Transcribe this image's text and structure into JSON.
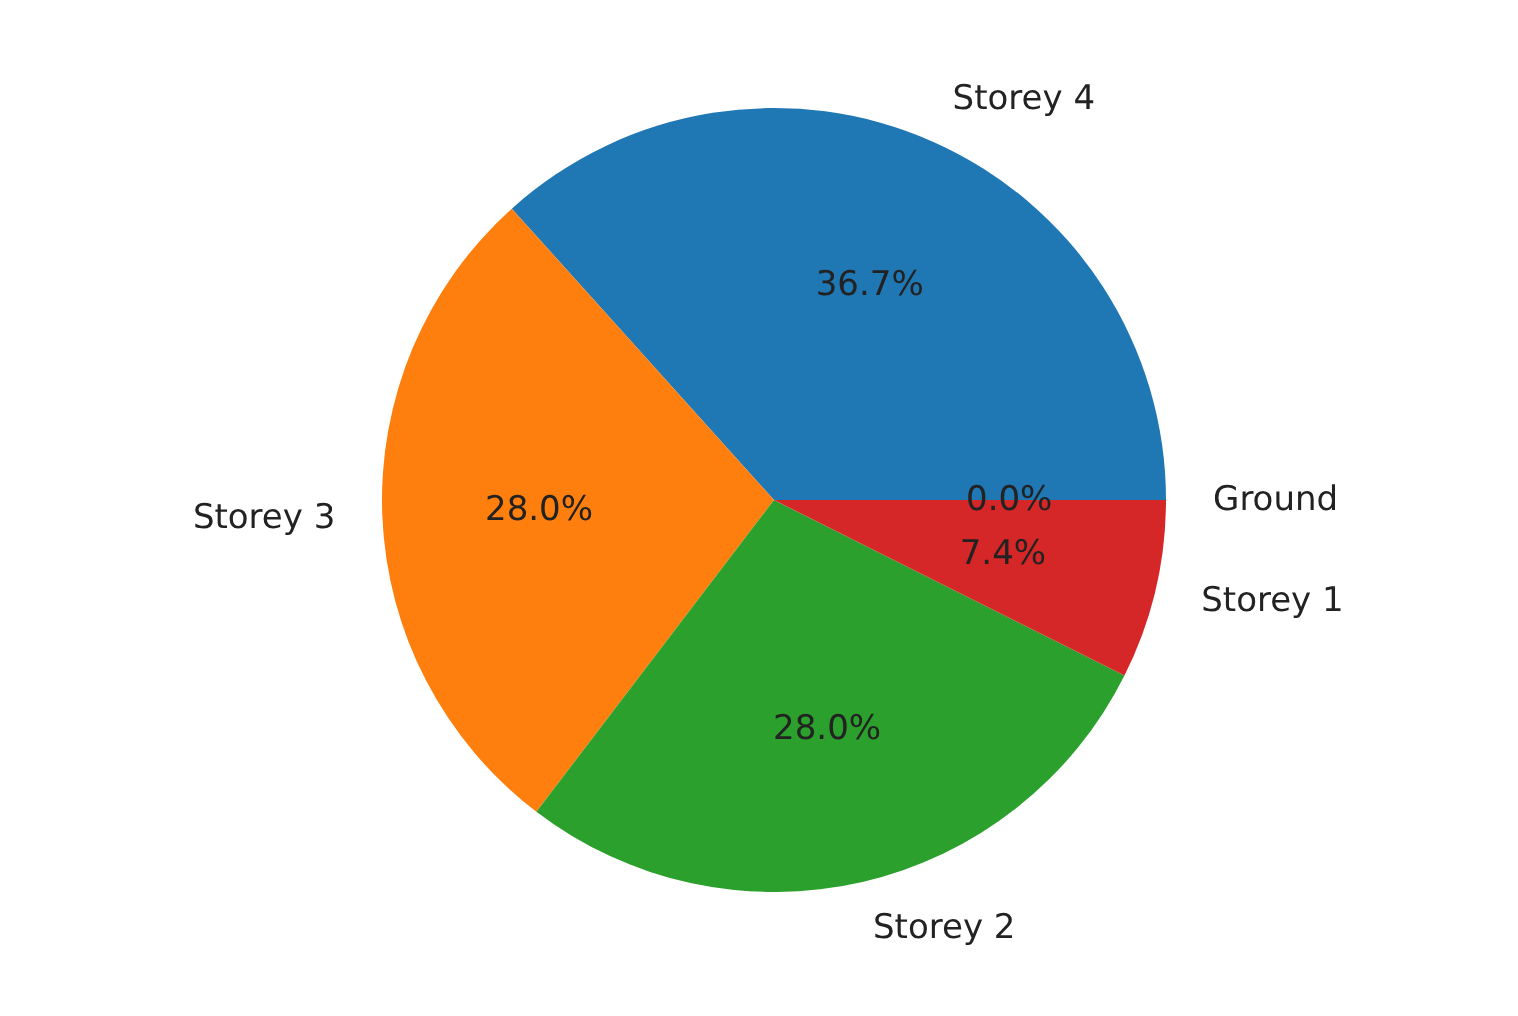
{
  "chart_data": {
    "type": "pie",
    "categories": [
      "Storey 4",
      "Storey 3",
      "Storey 2",
      "Storey 1",
      "Ground"
    ],
    "values": [
      36.7,
      28.0,
      28.0,
      7.4,
      0.0
    ],
    "colors": [
      "#1f77b4",
      "#ff7f0e",
      "#2ca02c",
      "#d62728",
      "#9467bd"
    ],
    "value_labels": [
      "36.7%",
      "28.0%",
      "28.0%",
      "7.4%",
      "0.0%"
    ]
  }
}
